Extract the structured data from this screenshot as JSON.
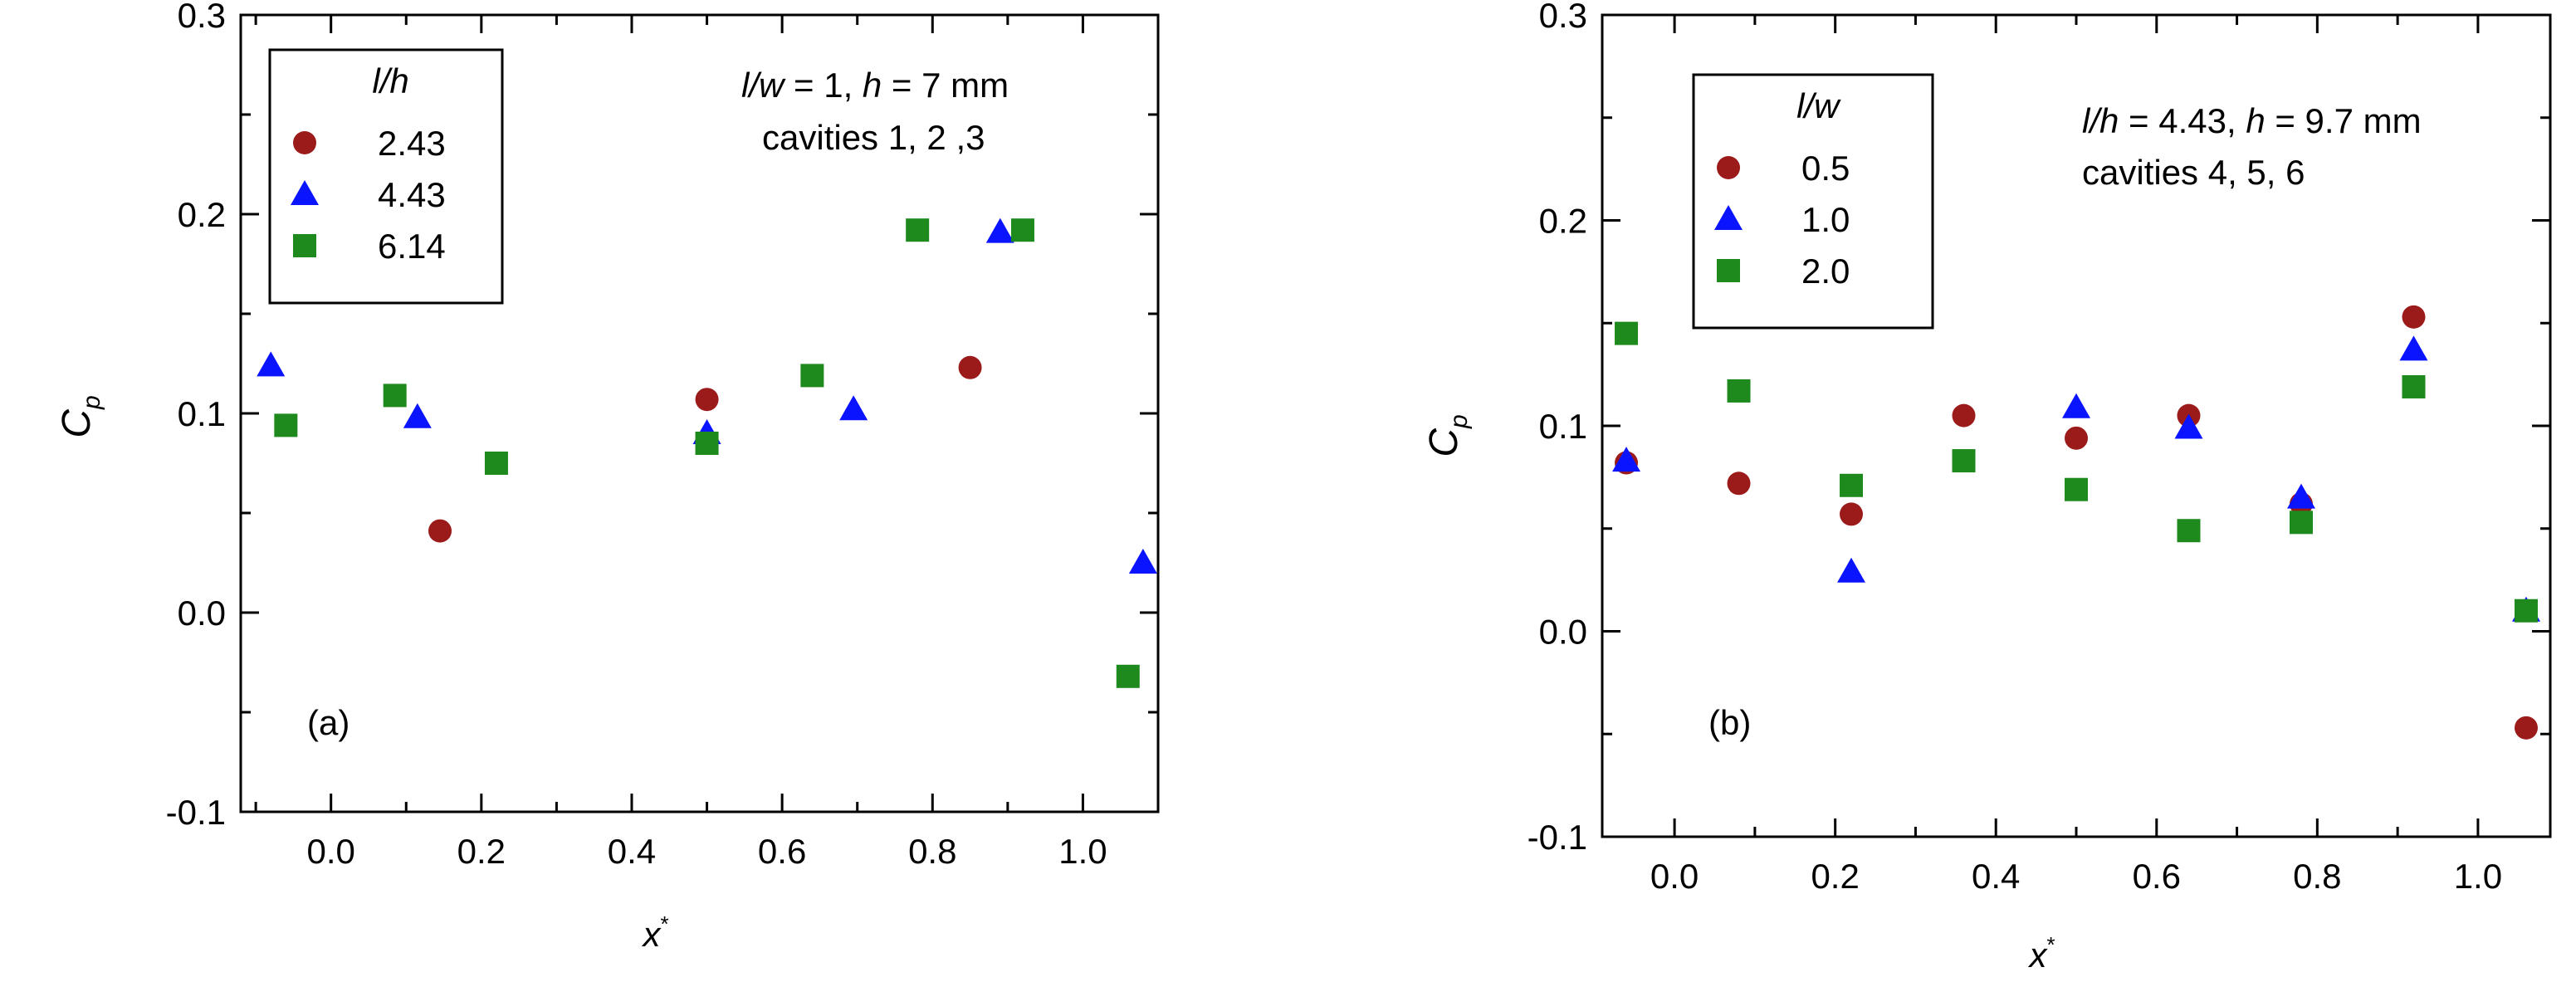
{
  "colors": {
    "circle": "#9b1b1b",
    "triangle": "#0a14ff",
    "square": "#1e8a1e"
  },
  "chart_data": [
    {
      "type": "scatter",
      "panel_label": "(a)",
      "xlabel": "x",
      "xlabel_sup": "*",
      "ylabel": "C",
      "ylabel_sub": "p",
      "xlim": [
        -0.12,
        1.1
      ],
      "ylim": [
        -0.1,
        0.3
      ],
      "xticks": [
        "0.0",
        "0.2",
        "0.4",
        "0.6",
        "0.8",
        "1.0"
      ],
      "yticks": [
        "-0.1",
        "0.0",
        "0.1",
        "0.2",
        "0.3"
      ],
      "legend_title_italic": "l/h",
      "legend_title_rest": "",
      "annotation_line1": {
        "p1": "l/w",
        "p2": " = 1, ",
        "p3": "h",
        "p4": " = 7 mm"
      },
      "annotation_line2": "cavities 1, 2 ,3",
      "series": [
        {
          "name": "2.43",
          "marker": "circle",
          "x": [
            0.145,
            0.5,
            0.85
          ],
          "y": [
            0.041,
            0.107,
            0.123
          ]
        },
        {
          "name": "4.43",
          "marker": "triangle",
          "x": [
            -0.08,
            0.115,
            0.5,
            0.695,
            0.89,
            1.08
          ],
          "y": [
            0.124,
            0.098,
            0.09,
            0.102,
            0.191,
            0.025
          ]
        },
        {
          "name": "6.14",
          "marker": "square",
          "x": [
            -0.06,
            0.085,
            0.22,
            0.5,
            0.64,
            0.78,
            0.92,
            1.06
          ],
          "y": [
            0.094,
            0.109,
            0.075,
            0.085,
            0.119,
            0.192,
            0.192,
            -0.032
          ]
        }
      ]
    },
    {
      "type": "scatter",
      "panel_label": "(b)",
      "xlabel": "x",
      "xlabel_sup": "*",
      "ylabel": "C",
      "ylabel_sub": "p",
      "xlim": [
        -0.09,
        1.09
      ],
      "ylim": [
        -0.1,
        0.3
      ],
      "xticks": [
        "0.0",
        "0.2",
        "0.4",
        "0.6",
        "0.8",
        "1.0"
      ],
      "yticks": [
        "-0.1",
        "0.0",
        "0.1",
        "0.2",
        "0.3"
      ],
      "legend_title_italic": "l/w",
      "legend_title_rest": "",
      "annotation_line1": {
        "p1": "l/h",
        "p2": " = 4.43, ",
        "p3": "h",
        "p4": " = 9.7 mm"
      },
      "annotation_line2": "cavities 4, 5, 6",
      "series": [
        {
          "name": "0.5",
          "marker": "circle",
          "x": [
            -0.06,
            0.08,
            0.22,
            0.36,
            0.5,
            0.64,
            0.78,
            0.92,
            1.06
          ],
          "y": [
            0.082,
            0.072,
            0.057,
            0.105,
            0.094,
            0.105,
            0.062,
            0.153,
            -0.047
          ]
        },
        {
          "name": "1.0",
          "marker": "triangle",
          "x": [
            -0.06,
            0.22,
            0.5,
            0.64,
            0.78,
            0.92,
            1.06
          ],
          "y": [
            0.083,
            0.029,
            0.109,
            0.099,
            0.065,
            0.137,
            0.01
          ]
        },
        {
          "name": "2.0",
          "marker": "square",
          "x": [
            -0.06,
            0.08,
            0.22,
            0.36,
            0.5,
            0.64,
            0.78,
            0.92,
            1.06
          ],
          "y": [
            0.145,
            0.117,
            0.071,
            0.083,
            0.069,
            0.049,
            0.053,
            0.119,
            0.01
          ]
        }
      ]
    }
  ]
}
